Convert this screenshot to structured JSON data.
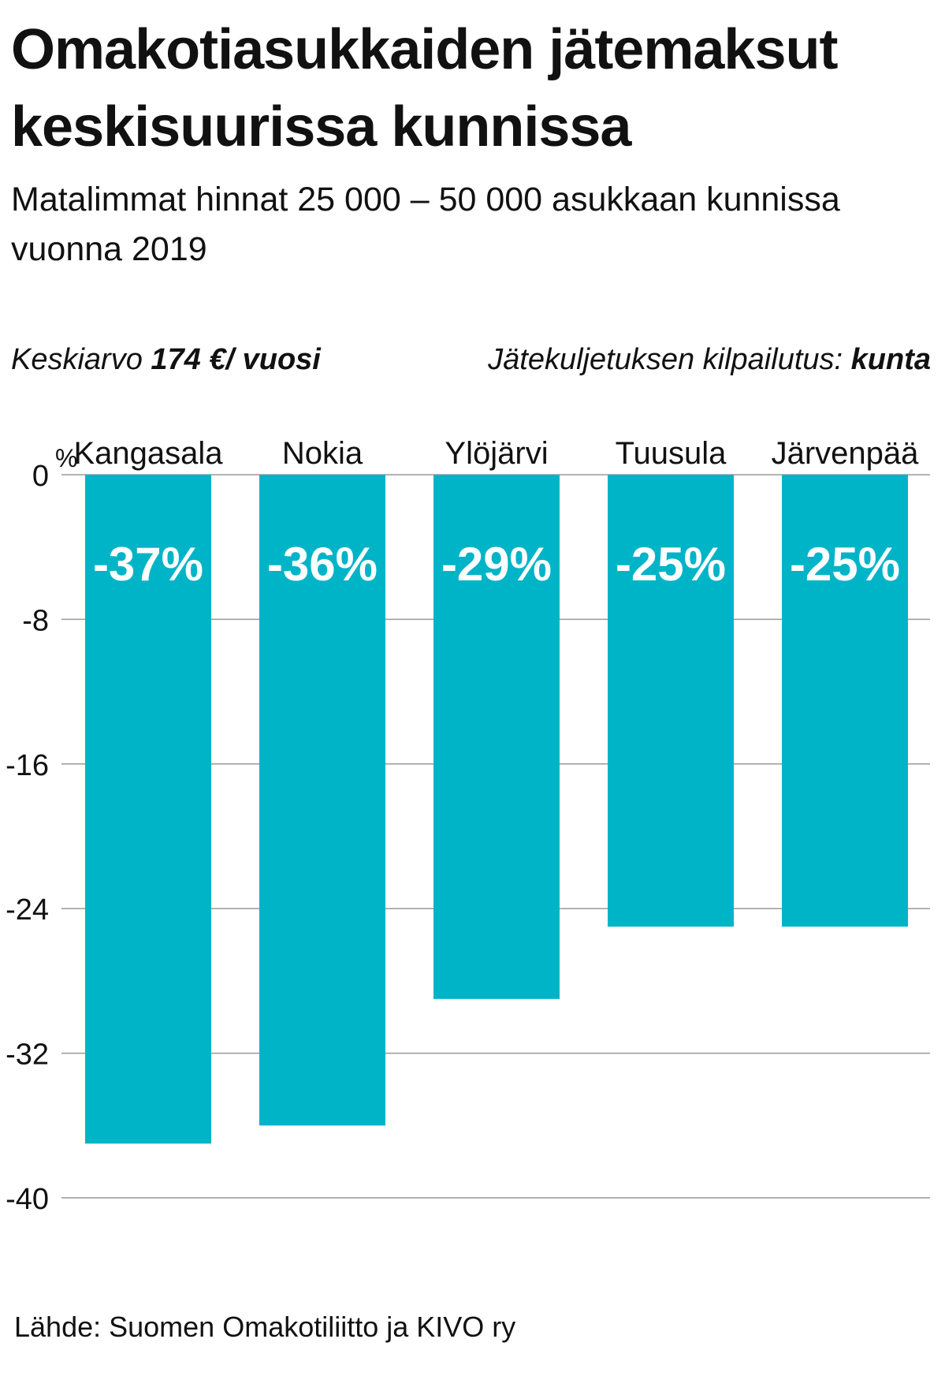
{
  "header": {
    "title": "Omakotiasukkaiden jätemaksut keskisuurissa kunnissa",
    "subtitle": "Matalimmat hinnat 25 000 – 50 000 asukkaan kunnissa vuonna 2019"
  },
  "meta": {
    "average_label": "Keskiarvo ",
    "average_value": "174 €/ vuosi",
    "tender_label": "Jätekuljetuksen kilpailutus: ",
    "tender_value": "kunta"
  },
  "footer": {
    "source": "Lähde: Suomen Omakotiliitto ja KIVO ry"
  },
  "colors": {
    "bar": "#00b4c8",
    "bar_label": "#ffffff",
    "grid": "#9a9a9a",
    "text": "#111111"
  },
  "chart_data": {
    "type": "bar",
    "orientation": "vertical",
    "categories": [
      "Kangasala",
      "Nokia",
      "Ylöjärvi",
      "Tuusula",
      "Järvenpää"
    ],
    "values": [
      -37,
      -36,
      -29,
      -25,
      -25
    ],
    "data_labels": [
      "-37%",
      "-36%",
      "-29%",
      "-25%",
      "-25%"
    ],
    "unit_label": "%",
    "ylim": [
      -40,
      0
    ],
    "yticks": [
      0,
      -8,
      -16,
      -24,
      -32,
      -40
    ],
    "ytick_labels": [
      "0",
      "-8",
      "-16",
      "-24",
      "-32",
      "-40"
    ],
    "grid": true,
    "category_labels_position": "top"
  }
}
